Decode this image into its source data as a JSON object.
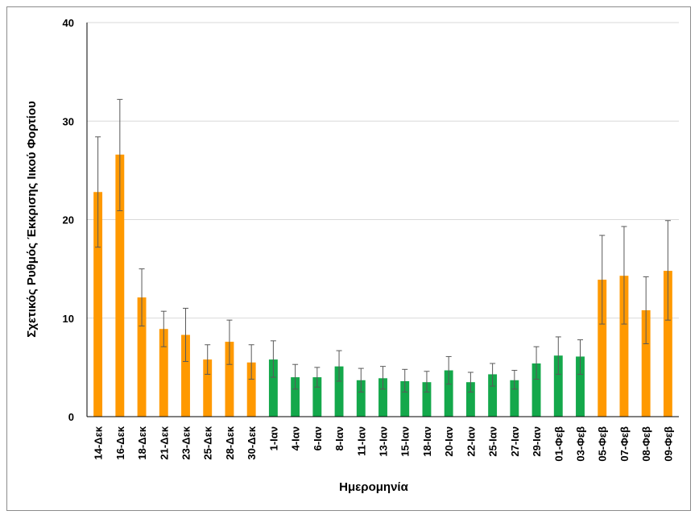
{
  "chart_data": {
    "type": "bar",
    "xlabel": "Ημερομηνία",
    "ylabel": "Σχετικός Ρυθμός Έκκρισης Ιικού Φορτίου",
    "ylim": [
      0,
      40
    ],
    "yticks": [
      0,
      10,
      20,
      30,
      40
    ],
    "grid": true,
    "categories": [
      "14-Δεκ",
      "16-Δεκ",
      "18-Δεκ",
      "21-Δεκ",
      "23-Δεκ",
      "25-Δεκ",
      "28-Δεκ",
      "30-Δεκ",
      "1-Ιαν",
      "4-Ιαν",
      "6-Ιαν",
      "8-Ιαν",
      "11-Ιαν",
      "13-Ιαν",
      "15-Ιαν",
      "18-Ιαν",
      "20-Ιαν",
      "22-Ιαν",
      "25-Ιαν",
      "27-Ιαν",
      "29-Ιαν",
      "01-Φεβ",
      "03-Φεβ",
      "05-Φεβ",
      "07-Φεβ",
      "08-Φεβ",
      "09-Φεβ"
    ],
    "values": [
      22.8,
      26.6,
      12.1,
      8.9,
      8.3,
      5.8,
      7.6,
      5.5,
      5.8,
      4.0,
      4.0,
      5.1,
      3.7,
      3.9,
      3.6,
      3.5,
      4.7,
      3.5,
      4.3,
      3.7,
      5.4,
      6.2,
      6.1,
      13.9,
      14.3,
      10.8,
      14.8
    ],
    "error_upper": [
      28.4,
      32.2,
      15.0,
      10.7,
      11.0,
      7.3,
      9.8,
      7.3,
      7.7,
      5.3,
      5.0,
      6.7,
      4.9,
      5.1,
      4.8,
      4.6,
      6.1,
      4.5,
      5.4,
      4.7,
      7.1,
      8.1,
      7.8,
      18.4,
      19.3,
      14.2,
      19.9
    ],
    "error_lower": [
      17.2,
      20.9,
      9.2,
      7.1,
      5.6,
      4.3,
      5.3,
      3.8,
      4.0,
      2.8,
      3.0,
      3.6,
      2.5,
      2.8,
      2.5,
      2.5,
      3.3,
      2.5,
      3.1,
      2.8,
      3.8,
      4.3,
      4.3,
      9.4,
      9.4,
      7.4,
      9.8
    ],
    "bar_colors": [
      "#ff9900",
      "#ff9900",
      "#ff9900",
      "#ff9900",
      "#ff9900",
      "#ff9900",
      "#ff9900",
      "#ff9900",
      "#14a84b",
      "#14a84b",
      "#14a84b",
      "#14a84b",
      "#14a84b",
      "#14a84b",
      "#14a84b",
      "#14a84b",
      "#14a84b",
      "#14a84b",
      "#14a84b",
      "#14a84b",
      "#14a84b",
      "#14a84b",
      "#14a84b",
      "#ff9900",
      "#ff9900",
      "#ff9900",
      "#ff9900"
    ],
    "colors": {
      "orange": "#ff9900",
      "green": "#14a84b",
      "grid": "#d9d9d9",
      "error_bar": "#595959"
    }
  }
}
